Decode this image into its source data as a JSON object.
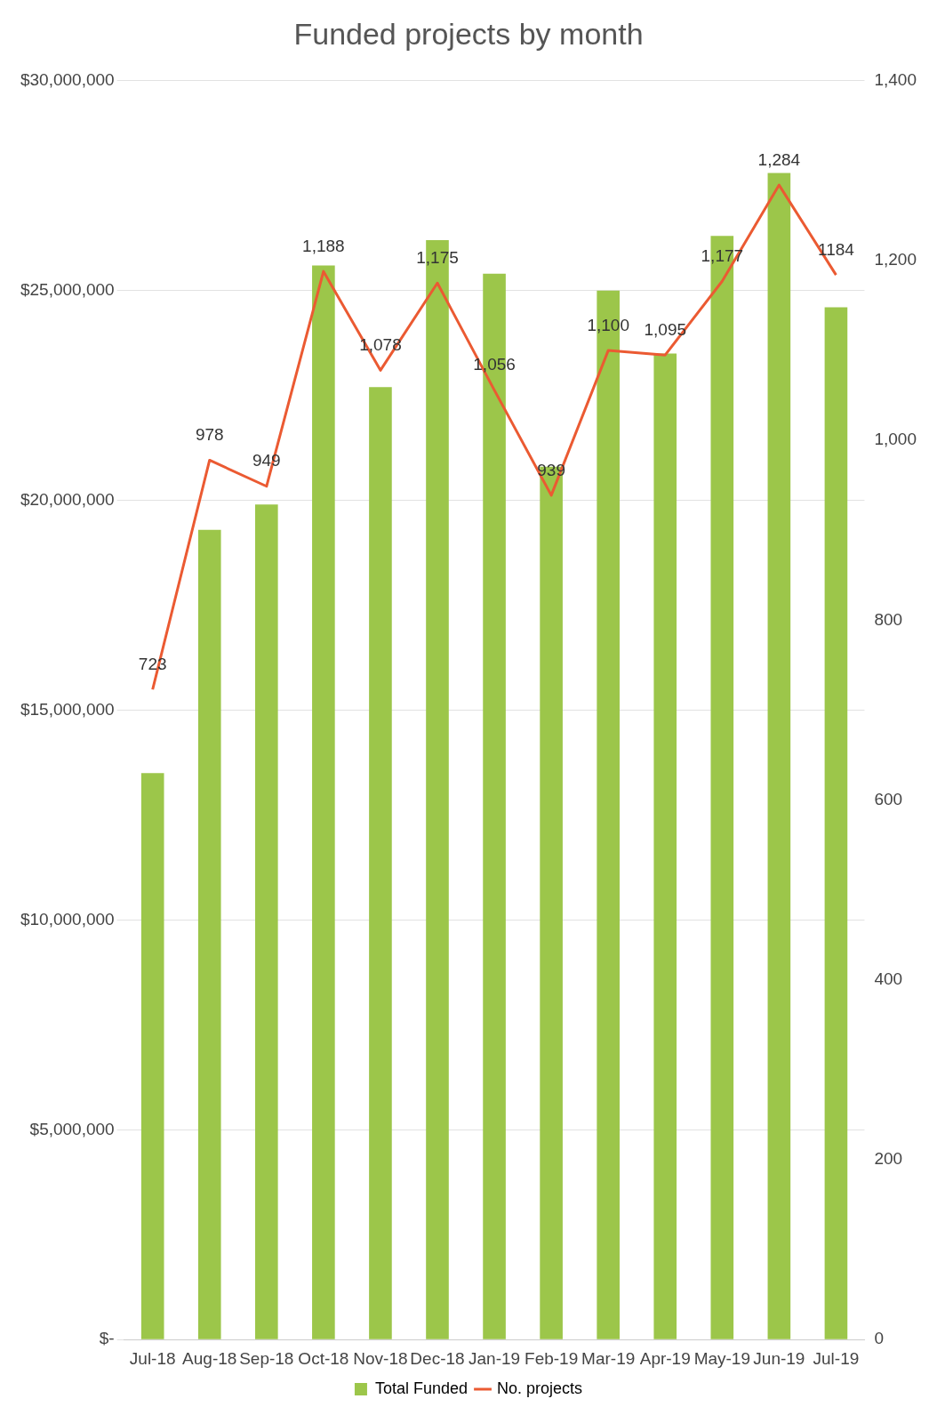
{
  "chart_data": {
    "type": "bar",
    "title": "Funded projects by month",
    "categories": [
      "Jul-18",
      "Aug-18",
      "Sep-18",
      "Oct-18",
      "Nov-18",
      "Dec-18",
      "Jan-19",
      "Feb-19",
      "Mar-19",
      "Apr-19",
      "May-19",
      "Jun-19",
      "Jul-19"
    ],
    "series": [
      {
        "name": "Total Funded",
        "color": "#9cc64a",
        "values": [
          13500000,
          19300000,
          19900000,
          25600000,
          22700000,
          26200000,
          25400000,
          20800000,
          25000000,
          23500000,
          26300000,
          27800000,
          24600000
        ]
      },
      {
        "name": "No. projects",
        "type": "line",
        "axis": "y2",
        "color": "#eb5a32",
        "values": [
          723,
          978,
          949,
          1188,
          1078,
          1175,
          1056,
          939,
          1100,
          1095,
          1177,
          1284,
          1184
        ],
        "value_labels": [
          "723",
          "978",
          "949",
          "1,188",
          "1,078",
          "1,175",
          "1,056",
          "939",
          "1,100",
          "1,095",
          "1,177",
          "1,284",
          "1184"
        ]
      }
    ],
    "ylim": [
      0,
      30000000
    ],
    "yticks": [
      {
        "value": 0,
        "label": "$-"
      },
      {
        "value": 5000000,
        "label": "$5,000,000"
      },
      {
        "value": 10000000,
        "label": "$10,000,000"
      },
      {
        "value": 15000000,
        "label": "$15,000,000"
      },
      {
        "value": 20000000,
        "label": "$20,000,000"
      },
      {
        "value": 25000000,
        "label": "$25,000,000"
      },
      {
        "value": 30000000,
        "label": "$30,000,000"
      }
    ],
    "y2lim": [
      0,
      1400
    ],
    "y2ticks": [
      0,
      {
        "value": 200,
        "label": "200"
      },
      {
        "value": 400,
        "label": "400"
      },
      {
        "value": 600,
        "label": "600"
      },
      {
        "value": 800,
        "label": "800"
      },
      {
        "value": 1000,
        "label": "1,000"
      },
      {
        "value": 1200,
        "label": "1,200"
      },
      {
        "value": 1400,
        "label": "1,400"
      }
    ],
    "grid": "y",
    "legend": "bottom",
    "marker": "none",
    "line_style": "solid"
  }
}
